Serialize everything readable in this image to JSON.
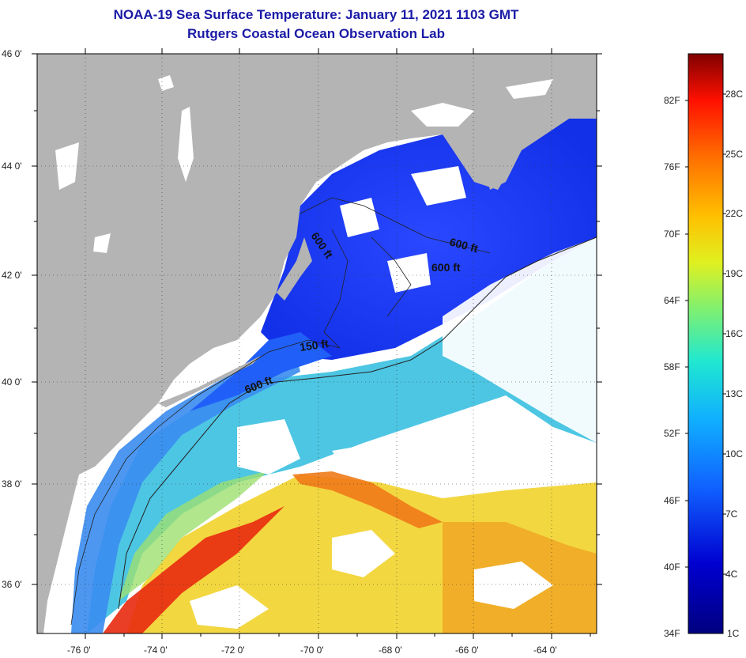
{
  "header": {
    "title_line1": "NOAA-19 Sea Surface Temperature:  January 11, 2021 1103 GMT",
    "title_line2": "Rutgers Coastal Ocean Observation Lab"
  },
  "map": {
    "lat_ticks": [
      "46 0'",
      "44 0'",
      "42 0'",
      "40 0'",
      "38 0'",
      "36 0'"
    ],
    "lon_ticks": [
      "-76 0'",
      "-74 0'",
      "-72 0'",
      "-70 0'",
      "-68 0'",
      "-66 0'",
      "-64 0'"
    ],
    "depth_labels": [
      "600 ft",
      "600 ft",
      "600 ft",
      "150 ft",
      "600 ft"
    ],
    "colors": {
      "land": "#b4b4b4",
      "cloud": "#ffffff",
      "cold": "#1a3cf0",
      "mid": "#3aa8f0",
      "warm": "#f0d020",
      "hot": "#e82a10"
    }
  },
  "colorbar": {
    "fahrenheit_labels": [
      "82F",
      "76F",
      "70F",
      "64F",
      "58F",
      "52F",
      "46F",
      "40F",
      "34F"
    ],
    "celsius_labels": [
      "28C",
      "25C",
      "22C",
      "19C",
      "16C",
      "13C",
      "10C",
      "7C",
      "4C",
      "1C"
    ]
  }
}
